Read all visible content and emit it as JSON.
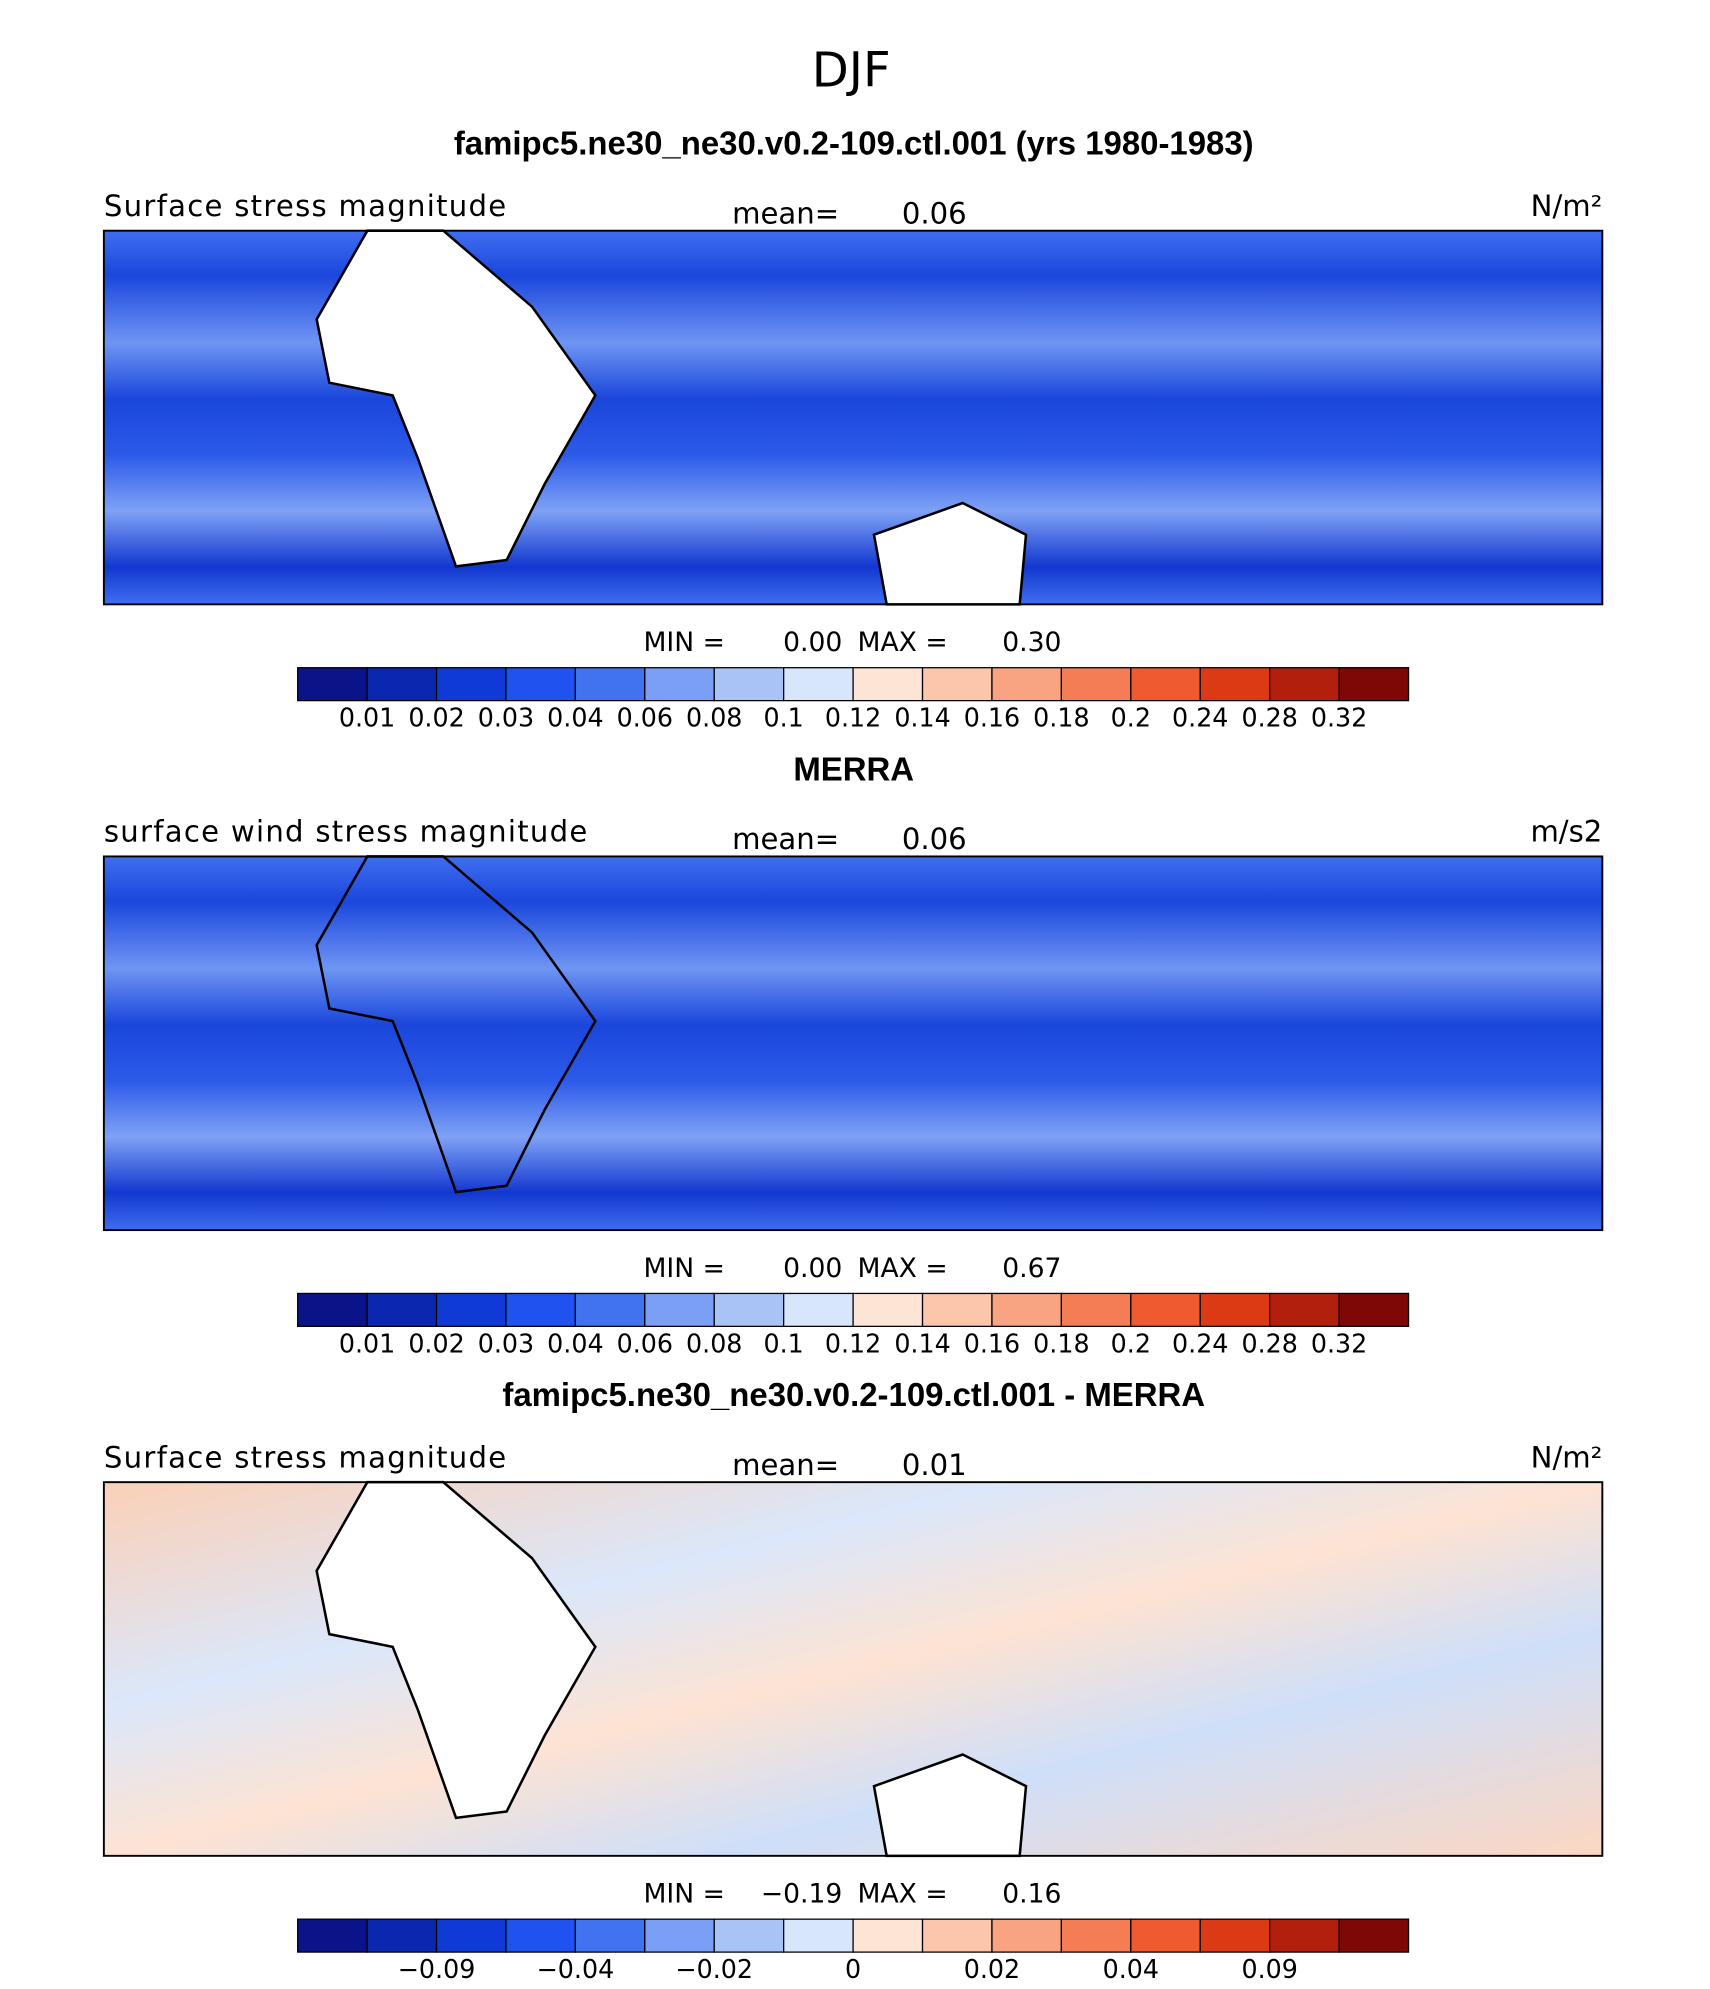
{
  "title": "DJF",
  "colorbar": {
    "colors": [
      "#0a1488",
      "#0b27b0",
      "#0f3ad6",
      "#1f52ee",
      "#4172f0",
      "#7b9ff5",
      "#aac3f7",
      "#d7e6fa",
      "#fde5d5",
      "#fbc6aa",
      "#f8a381",
      "#f47d56",
      "#ef5a30",
      "#dc3915",
      "#b21f0d",
      "#7e0806"
    ]
  },
  "panels": [
    {
      "title": "famipc5.ne30_ne30.v0.2-109.ctl.001 (yrs 1980-1983)",
      "field": "Surface stress magnitude",
      "mean_label": "mean=",
      "mean": "0.06",
      "units": "N/m²",
      "min_label": "MIN =",
      "min": "0.00",
      "max_label": "MAX =",
      "max": "0.30",
      "colorbar_labels": [
        "0.01",
        "0.02",
        "0.03",
        "0.04",
        "0.06",
        "0.08",
        "0.1",
        "0.12",
        "0.14",
        "0.16",
        "0.18",
        "0.2",
        "0.24",
        "0.28",
        "0.32"
      ]
    },
    {
      "title": "MERRA",
      "field": "surface wind stress magnitude",
      "mean_label": "mean=",
      "mean": "0.06",
      "units": "m/s2",
      "min_label": "MIN =",
      "min": "0.00",
      "max_label": "MAX =",
      "max": "0.67",
      "colorbar_labels": [
        "0.01",
        "0.02",
        "0.03",
        "0.04",
        "0.06",
        "0.08",
        "0.1",
        "0.12",
        "0.14",
        "0.16",
        "0.18",
        "0.2",
        "0.24",
        "0.28",
        "0.32"
      ]
    },
    {
      "title": "famipc5.ne30_ne30.v0.2-109.ctl.001 - MERRA",
      "field": "Surface stress magnitude",
      "mean_label": "mean=",
      "mean": "0.01",
      "units": "N/m²",
      "min_label": "MIN =",
      "min": "−0.19",
      "max_label": "MAX =",
      "max": "0.16",
      "colorbar_labels": [
        null,
        "−0.09",
        null,
        "−0.04",
        null,
        "−0.02",
        null,
        "0",
        null,
        "0.02",
        null,
        "0.04",
        null,
        "0.09",
        null
      ]
    }
  ]
}
